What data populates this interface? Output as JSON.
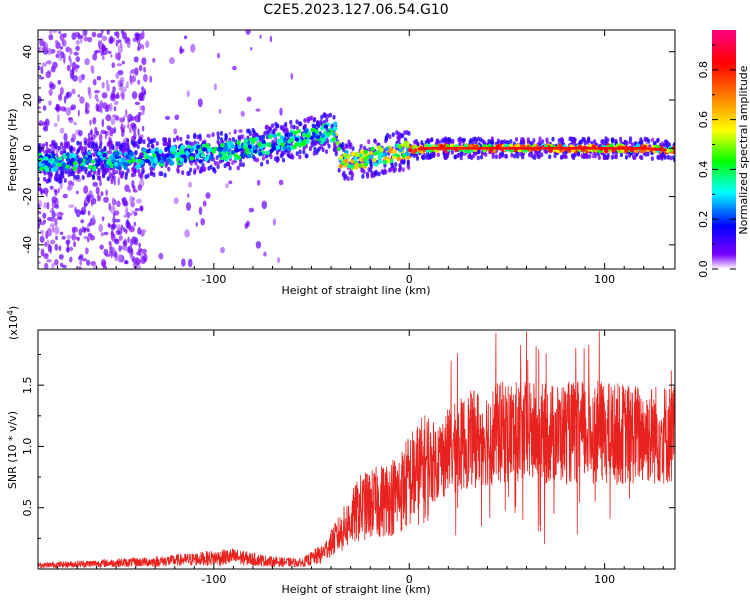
{
  "title": "C2E5.2023.127.06.54.G10",
  "chart_data": [
    {
      "type": "heatmap",
      "name": "spectrogram",
      "xlabel": "Height of straight line (km)",
      "ylabel": "Frequency (Hz)",
      "xlim": [
        -190,
        136
      ],
      "ylim": [
        -50,
        49
      ],
      "xticks": [
        -100,
        0,
        100
      ],
      "xtick_labels": [
        "-100",
        "0",
        "100"
      ],
      "yticks": [
        -40,
        -20,
        0,
        20,
        40
      ],
      "ytick_labels": [
        "-40",
        "-20",
        "0",
        "20",
        "40"
      ],
      "colorbar": {
        "label": "Normalized spectral amplitude",
        "range": [
          0,
          0.96
        ],
        "ticks": [
          0.0,
          0.2,
          0.4,
          0.6,
          0.8
        ],
        "tick_labels": [
          "0.0",
          "0.2",
          "0.4",
          "0.6",
          "0.8"
        ],
        "colors": [
          "#ffffff",
          "#5500ff",
          "#0000ff",
          "#00ffff",
          "#00ff00",
          "#ffff00",
          "#ff8000",
          "#ff0000",
          "#ff0080"
        ]
      },
      "ridge": {
        "x": [
          -190,
          -150,
          -120,
          -90,
          -70,
          -50,
          -38,
          -35,
          -30,
          -20,
          -10,
          0,
          10,
          50,
          100,
          120,
          136
        ],
        "y": [
          -6,
          -5,
          -3,
          -1,
          2,
          5,
          7,
          -5,
          -5,
          -4,
          -2,
          -0.5,
          0,
          0,
          0,
          0,
          -1
        ]
      }
    },
    {
      "type": "line",
      "name": "snr",
      "xlabel": "Height of straight line (km)",
      "ylabel": "SNR (10 * v/v)",
      "multiplier_label": "(x10",
      "multiplier_exp": "4",
      "multiplier_close": ")",
      "xlim": [
        -190,
        136
      ],
      "ylim": [
        0,
        1.95
      ],
      "xticks": [
        -100,
        0,
        100
      ],
      "xtick_labels": [
        "-100",
        "0",
        "100"
      ],
      "yticks": [
        0.5,
        1.0,
        1.5
      ],
      "ytick_labels": [
        "0.5",
        "1.0",
        "1.5"
      ],
      "line_color": "#e8231f",
      "envelope": {
        "x": [
          -190,
          -150,
          -130,
          -110,
          -90,
          -70,
          -55,
          -45,
          -35,
          -25,
          -15,
          -5,
          0,
          10,
          20,
          30,
          50,
          70,
          90,
          110,
          136
        ],
        "y": [
          0.03,
          0.05,
          0.06,
          0.08,
          0.1,
          0.06,
          0.05,
          0.12,
          0.3,
          0.5,
          0.55,
          0.62,
          0.72,
          0.85,
          0.95,
          1.05,
          1.12,
          1.1,
          1.12,
          1.1,
          1.1
        ]
      }
    }
  ]
}
